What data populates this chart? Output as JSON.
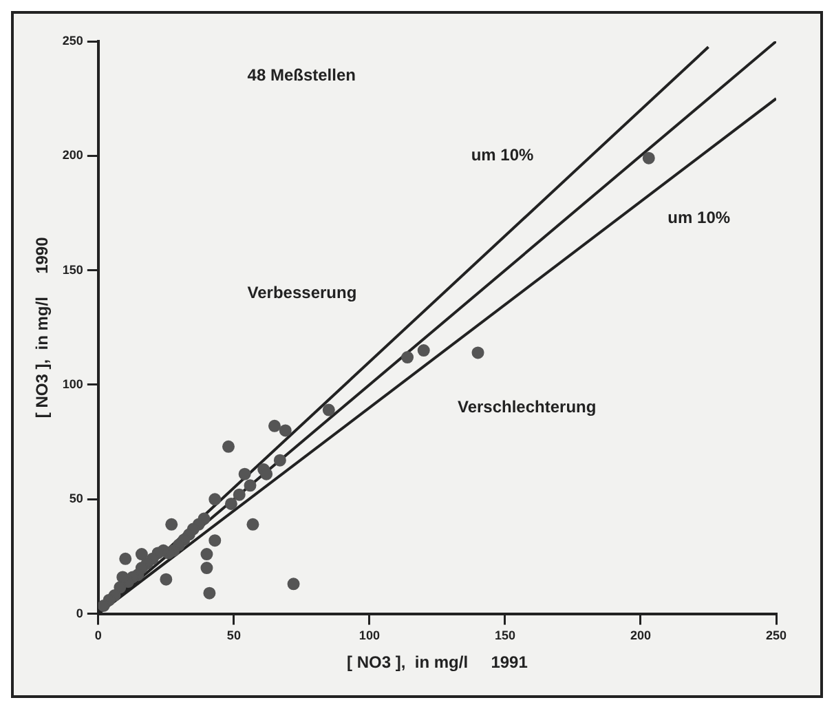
{
  "chart_data": {
    "type": "scatter",
    "xlabel": "[ NO3 ],  in mg/l     1991",
    "ylabel": "[ NO3 ],  in mg/l     1990",
    "xlim": [
      0,
      250
    ],
    "ylim": [
      0,
      250
    ],
    "xticks": [
      0,
      50,
      100,
      150,
      200,
      250
    ],
    "yticks": [
      0,
      50,
      100,
      150,
      200,
      250
    ],
    "grid": false,
    "legend": false,
    "marker": "circle",
    "annotations": [
      "48 Meßstellen",
      "um 10%",
      "um 10%",
      "Verbesserung",
      "Verschlechterung"
    ],
    "series": [
      {
        "type": "scatter",
        "color": "#555555",
        "x": [
          203,
          114,
          120,
          140,
          85,
          65,
          69,
          48,
          67,
          61,
          62,
          54,
          52,
          56,
          43,
          49,
          57,
          72,
          41,
          40,
          40,
          43,
          27,
          10,
          16,
          25,
          39,
          37,
          35,
          33.5,
          31.6,
          29.7,
          27.8,
          25.9,
          24,
          22,
          20,
          18,
          16,
          14.6,
          12.7,
          11,
          9,
          8,
          6,
          4,
          2
        ],
        "values": [
          199,
          112,
          115,
          114,
          89,
          82,
          80,
          73,
          67,
          63,
          61,
          61,
          52,
          56,
          50,
          48,
          39,
          13,
          9,
          20,
          26,
          32,
          39,
          24,
          26,
          15,
          41.5,
          39,
          37,
          34.6,
          32.3,
          30,
          27.6,
          26.5,
          27.6,
          26.5,
          24,
          22,
          20,
          17,
          16,
          14,
          16,
          11.5,
          8,
          6,
          3.5
        ]
      },
      {
        "type": "line",
        "color": "#222222",
        "marker": "none",
        "x": [
          0,
          225
        ],
        "values": [
          0,
          247.5
        ]
      },
      {
        "type": "line",
        "color": "#222222",
        "marker": "none",
        "x": [
          0,
          250
        ],
        "values": [
          0,
          250
        ]
      },
      {
        "type": "line",
        "color": "#222222",
        "marker": "none",
        "x": [
          0,
          250
        ],
        "values": [
          0,
          225
        ]
      }
    ]
  }
}
